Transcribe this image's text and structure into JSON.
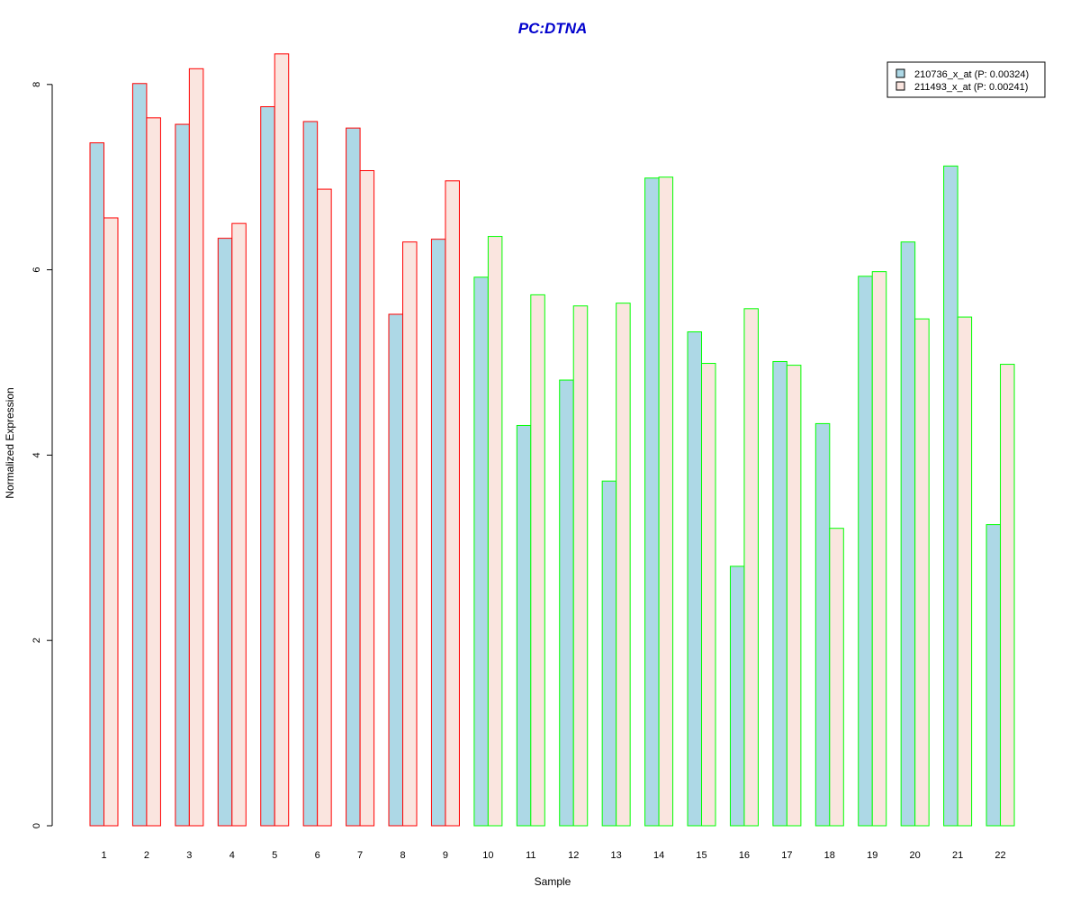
{
  "chart_data": {
    "type": "bar",
    "title": "PC:DTNA",
    "xlabel": "Sample",
    "ylabel": "Normalized Expression",
    "categories": [
      "1",
      "2",
      "3",
      "4",
      "5",
      "6",
      "7",
      "8",
      "9",
      "10",
      "11",
      "12",
      "13",
      "14",
      "15",
      "16",
      "17",
      "18",
      "19",
      "20",
      "21",
      "22"
    ],
    "yticks": [
      0,
      2,
      4,
      6,
      8
    ],
    "ylim": [
      0,
      8.4
    ],
    "grid": false,
    "legend_position": "top-right",
    "series": [
      {
        "name": "210736_x_at (P: 0.00324)",
        "fill": "#add8e6",
        "values": [
          7.37,
          8.01,
          7.57,
          6.34,
          7.76,
          7.6,
          7.53,
          5.52,
          6.33,
          5.92,
          4.32,
          4.81,
          3.72,
          6.99,
          5.33,
          2.8,
          5.01,
          4.34,
          5.93,
          6.3,
          7.12,
          3.25
        ]
      },
      {
        "name": "211493_x_at (P: 0.00241)",
        "fill": "#fae5df",
        "values": [
          6.56,
          7.64,
          8.17,
          6.5,
          8.33,
          6.87,
          7.07,
          6.3,
          6.96,
          6.36,
          5.73,
          5.61,
          5.64,
          7.0,
          4.99,
          5.58,
          4.97,
          3.21,
          5.98,
          5.47,
          5.49,
          4.98
        ]
      }
    ],
    "group_border_colors": [
      "#ff0000",
      "#ff0000",
      "#ff0000",
      "#ff0000",
      "#ff0000",
      "#ff0000",
      "#ff0000",
      "#ff0000",
      "#ff0000",
      "#00ff00",
      "#00ff00",
      "#00ff00",
      "#00ff00",
      "#00ff00",
      "#00ff00",
      "#00ff00",
      "#00ff00",
      "#00ff00",
      "#00ff00",
      "#00ff00",
      "#00ff00",
      "#00ff00"
    ],
    "colors": {
      "title": "#0000cd",
      "axis": "#000000",
      "legend_border": "#000000"
    }
  }
}
